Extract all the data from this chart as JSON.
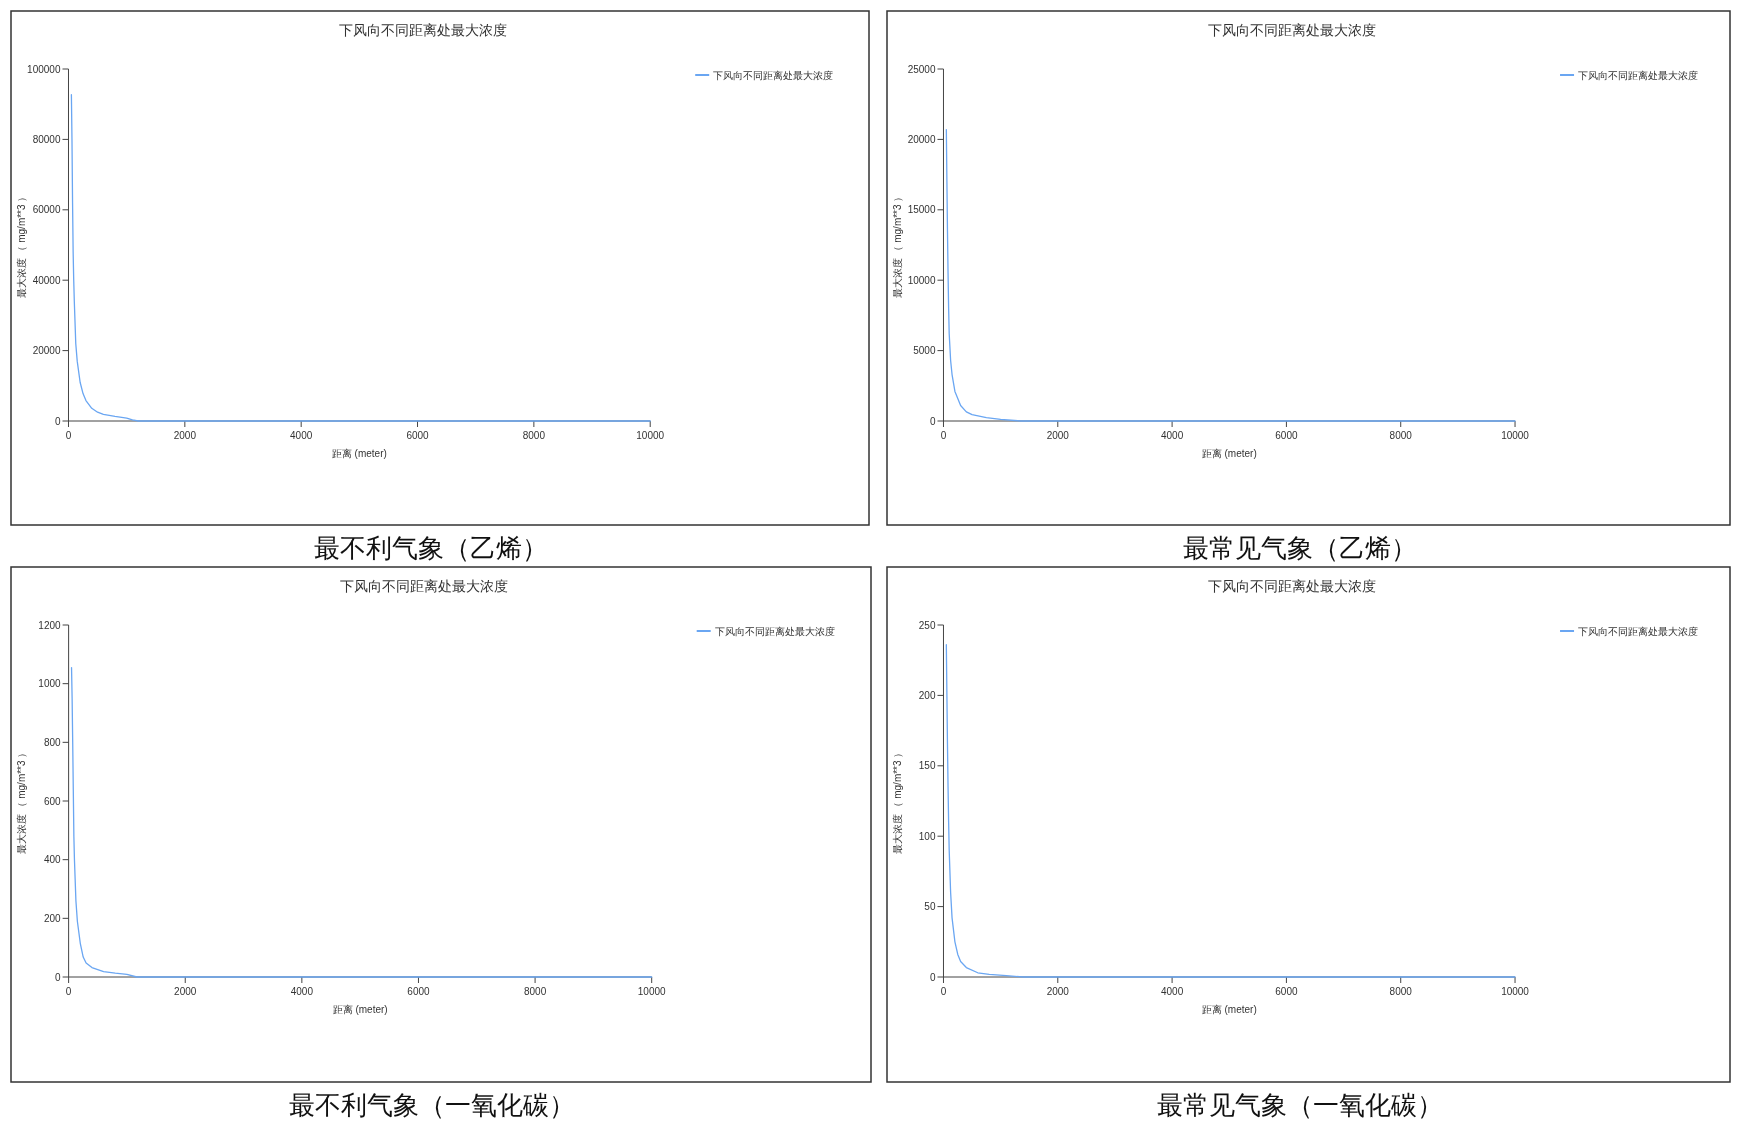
{
  "chart_data": [
    {
      "type": "line",
      "title": "下风向不同距离处最大浓度",
      "xlabel": "距离 (meter)",
      "ylabel": "最大浓度 （ mg/m**3 ）",
      "legend": "top right",
      "annotations": [
        "最不利气象（乙烯）"
      ],
      "xlim": [
        0,
        10000
      ],
      "xticks": [
        0,
        2000,
        4000,
        6000,
        8000,
        10000
      ],
      "ylim": [
        0,
        100000
      ],
      "yticks": [
        0,
        20000,
        40000,
        60000,
        80000,
        100000
      ],
      "x": [
        50,
        60,
        70,
        80,
        90,
        100,
        125,
        150,
        200,
        250,
        300,
        400,
        500,
        600,
        800,
        1000,
        1100,
        1200,
        10000
      ],
      "series": [
        {
          "name": "下风向不同距离处最大浓度",
          "color": "#6aa6f2",
          "values": [
            92700,
            80000,
            62000,
            48000,
            40000,
            34000,
            22000,
            17000,
            11000,
            7800,
            5800,
            3600,
            2500,
            1900,
            1300,
            800,
            300,
            0,
            0
          ]
        }
      ]
    },
    {
      "type": "line",
      "title": "下风向不同距离处最大浓度",
      "xlabel": "距离 (meter)",
      "ylabel": "最大浓度 （ mg/m**3 ）",
      "legend": "top right",
      "annotations": [
        "最常见气象（乙烯）"
      ],
      "xlim": [
        0,
        10000
      ],
      "xticks": [
        0,
        2000,
        4000,
        6000,
        8000,
        10000
      ],
      "ylim": [
        0,
        25000
      ],
      "yticks": [
        0,
        5000,
        10000,
        15000,
        20000,
        25000
      ],
      "x": [
        50,
        60,
        70,
        80,
        90,
        100,
        125,
        150,
        200,
        300,
        400,
        500,
        750,
        1000,
        1350,
        10000
      ],
      "series": [
        {
          "name": "下风向不同距离处最大浓度",
          "color": "#6aa6f2",
          "values": [
            20700,
            17000,
            13500,
            10500,
            8000,
            6200,
            4300,
            3300,
            2100,
            1100,
            650,
            450,
            240,
            120,
            0,
            0
          ]
        }
      ]
    },
    {
      "type": "line",
      "title": "下风向不同距离处最大浓度",
      "xlabel": "距离 (meter)",
      "ylabel": "最大浓度 （ mg/m**3 ）",
      "legend": "top right",
      "annotations": [
        "最不利气象（一氧化碳）"
      ],
      "xlim": [
        0,
        10000
      ],
      "xticks": [
        0,
        2000,
        4000,
        6000,
        8000,
        10000
      ],
      "ylim": [
        0,
        1200
      ],
      "yticks": [
        0,
        200,
        400,
        600,
        800,
        1000,
        1200
      ],
      "x": [
        50,
        60,
        70,
        80,
        90,
        100,
        125,
        150,
        200,
        250,
        300,
        400,
        600,
        800,
        1000,
        1170,
        10000
      ],
      "series": [
        {
          "name": "下风向不同距离处最大浓度",
          "color": "#6aa6f2",
          "values": [
            1055,
            950,
            800,
            640,
            480,
            400,
            260,
            190,
            115,
            68,
            48,
            32,
            18,
            13,
            9,
            0,
            0
          ]
        }
      ]
    },
    {
      "type": "line",
      "title": "下风向不同距离处最大浓度",
      "xlabel": "距离 (meter)",
      "ylabel": "最大浓度 （ mg/m**3 ）",
      "legend": "top right",
      "annotations": [
        "最常见气象（一氧化碳）"
      ],
      "xlim": [
        0,
        10000
      ],
      "xticks": [
        0,
        2000,
        4000,
        6000,
        8000,
        10000
      ],
      "ylim": [
        0,
        250
      ],
      "yticks": [
        0,
        50,
        100,
        150,
        200,
        250
      ],
      "x": [
        50,
        60,
        70,
        80,
        90,
        100,
        125,
        150,
        200,
        250,
        300,
        400,
        600,
        800,
        1100,
        1400,
        10000
      ],
      "series": [
        {
          "name": "下风向不同距离处最大浓度",
          "color": "#6aa6f2",
          "values": [
            236,
            200,
            165,
            135,
            110,
            90,
            60,
            42,
            25,
            16,
            11,
            6.7,
            3,
            1.8,
            1,
            0,
            0
          ]
        }
      ]
    }
  ]
}
